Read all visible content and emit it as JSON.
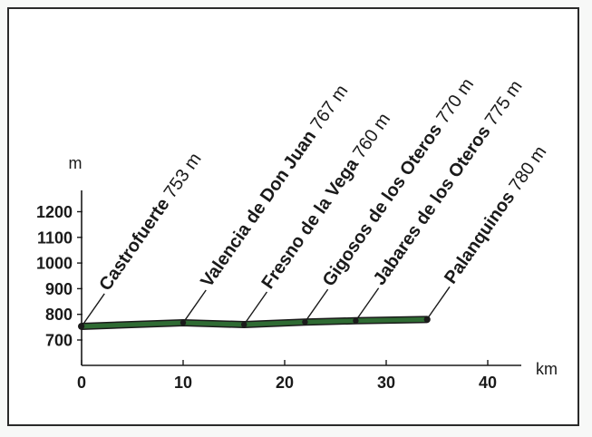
{
  "chart_data": {
    "type": "line",
    "ylabel": "m",
    "xlabel": "km",
    "xlim": [
      0,
      45
    ],
    "ylim": [
      700,
      1250
    ],
    "x_ticks": [
      "0",
      "10",
      "20",
      "30",
      "40"
    ],
    "y_ticks": [
      "700",
      "800",
      "900",
      "1000",
      "1100",
      "1200"
    ],
    "series": [
      {
        "color": "#2f6b33",
        "points": [
          {
            "x": 0,
            "y": 753
          },
          {
            "x": 10,
            "y": 767
          },
          {
            "x": 16,
            "y": 760
          },
          {
            "x": 22,
            "y": 770
          },
          {
            "x": 27,
            "y": 775
          },
          {
            "x": 34,
            "y": 780
          }
        ]
      }
    ],
    "annotations": [
      {
        "name": "Castrofuerte",
        "elevation": "753 m",
        "x": 0
      },
      {
        "name": "Valencia de Don Juan",
        "elevation": "767 m",
        "x": 10
      },
      {
        "name": "Fresno de la Vega",
        "elevation": "760 m",
        "x": 16
      },
      {
        "name": "Gigosos de los Oteros",
        "elevation": "770 m",
        "x": 22
      },
      {
        "name": "Jabares de los Oteros",
        "elevation": "775 m",
        "x": 27
      },
      {
        "name": "Palanquinos",
        "elevation": "780 m",
        "x": 34
      }
    ],
    "grid": false
  }
}
